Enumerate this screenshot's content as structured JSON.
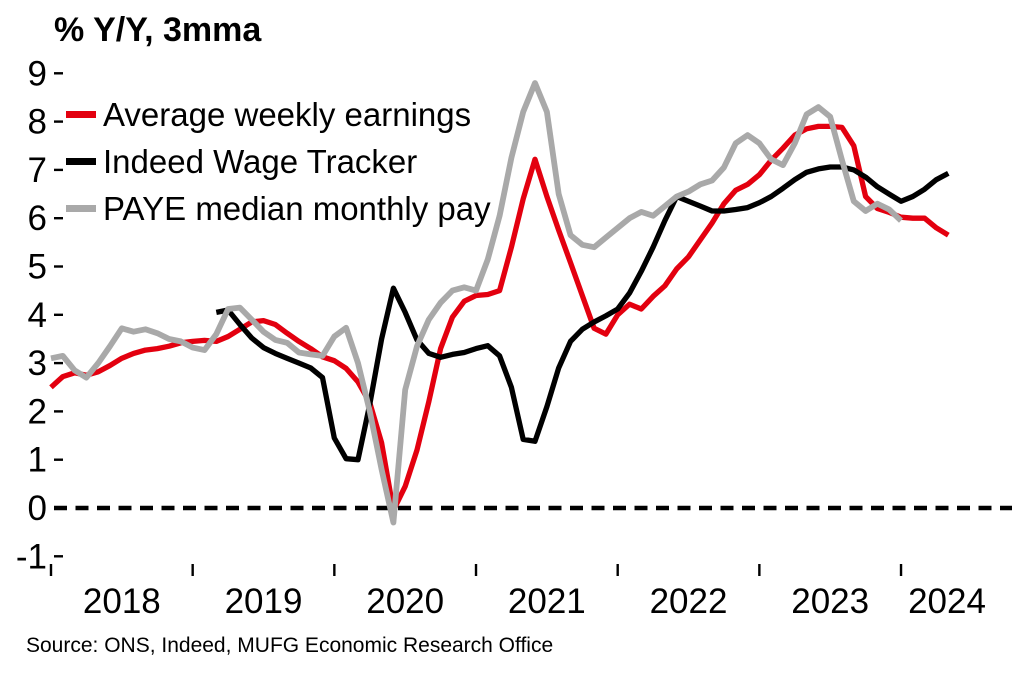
{
  "title": "% Y/Y, 3mma",
  "source": "Source: ONS, Indeed, MUFG Economic Research Office",
  "chart_data": {
    "type": "line",
    "title": "% Y/Y, 3mma",
    "grid": false,
    "legend_position": "top-left",
    "x_axis": {
      "unit": "month",
      "start": "2018-01",
      "end": "2024-05",
      "tick_years": [
        2018,
        2019,
        2020,
        2021,
        2022,
        2023,
        2024
      ]
    },
    "y_axis": {
      "ticks": [
        9,
        8,
        7,
        6,
        5,
        4,
        3,
        2,
        1,
        0,
        -1
      ],
      "range": [
        -1,
        9
      ],
      "zero_line_dashed": true
    },
    "series": [
      {
        "name": "Average weekly earnings",
        "color": "#e3000f",
        "stroke_width": 5.3,
        "start_month": "2018-01",
        "values": [
          2.5,
          2.72,
          2.8,
          2.75,
          2.82,
          2.95,
          3.1,
          3.2,
          3.27,
          3.3,
          3.35,
          3.42,
          3.45,
          3.47,
          3.45,
          3.55,
          3.7,
          3.85,
          3.88,
          3.8,
          3.62,
          3.45,
          3.3,
          3.13,
          3.05,
          2.89,
          2.61,
          2.18,
          1.35,
          -0.05,
          0.45,
          1.2,
          2.2,
          3.3,
          3.95,
          4.28,
          4.4,
          4.42,
          4.5,
          5.4,
          6.4,
          7.22,
          6.45,
          5.75,
          5.08,
          4.4,
          3.72,
          3.6,
          4.0,
          4.22,
          4.12,
          4.38,
          4.6,
          4.95,
          5.2,
          5.55,
          5.9,
          6.3,
          6.58,
          6.7,
          6.9,
          7.2,
          7.45,
          7.72,
          7.85,
          7.9,
          7.9,
          7.88,
          7.5,
          6.45,
          6.2,
          6.12,
          6.02,
          6.0,
          6.0,
          5.8,
          5.65
        ]
      },
      {
        "name": "Indeed Wage Tracker",
        "color": "#000000",
        "stroke_width": 5.3,
        "start_month": "2019-03",
        "values": [
          4.05,
          4.1,
          3.8,
          3.52,
          3.32,
          3.2,
          3.1,
          3.0,
          2.9,
          2.7,
          1.45,
          1.02,
          1.0,
          2.15,
          3.5,
          4.55,
          4.05,
          3.48,
          3.2,
          3.12,
          3.18,
          3.22,
          3.3,
          3.36,
          3.15,
          2.5,
          1.42,
          1.38,
          2.1,
          2.9,
          3.45,
          3.7,
          3.85,
          3.98,
          4.12,
          4.45,
          4.9,
          5.4,
          5.95,
          6.45,
          6.35,
          6.25,
          6.15,
          6.15,
          6.18,
          6.22,
          6.32,
          6.45,
          6.62,
          6.8,
          6.95,
          7.02,
          7.06,
          7.06,
          7.0,
          6.85,
          6.65,
          6.5,
          6.35,
          6.45,
          6.6,
          6.8,
          6.93
        ]
      },
      {
        "name": "PAYE median monthly pay",
        "color": "#a9a9a9",
        "stroke_width": 5.8,
        "start_month": "2018-01",
        "values": [
          3.1,
          3.15,
          2.85,
          2.7,
          3.0,
          3.35,
          3.72,
          3.65,
          3.7,
          3.62,
          3.5,
          3.45,
          3.32,
          3.27,
          3.6,
          4.12,
          4.15,
          3.9,
          3.65,
          3.48,
          3.42,
          3.22,
          3.18,
          3.15,
          3.55,
          3.73,
          3.0,
          2.0,
          0.8,
          -0.3,
          2.45,
          3.35,
          3.9,
          4.25,
          4.5,
          4.57,
          4.5,
          5.15,
          6.05,
          7.25,
          8.2,
          8.8,
          8.2,
          6.5,
          5.65,
          5.45,
          5.4,
          5.6,
          5.8,
          6.0,
          6.13,
          6.05,
          6.25,
          6.45,
          6.55,
          6.7,
          6.78,
          7.05,
          7.55,
          7.72,
          7.55,
          7.22,
          7.1,
          7.55,
          8.15,
          8.3,
          8.1,
          7.2,
          6.35,
          6.15,
          6.3,
          6.18,
          5.95
        ]
      }
    ]
  }
}
